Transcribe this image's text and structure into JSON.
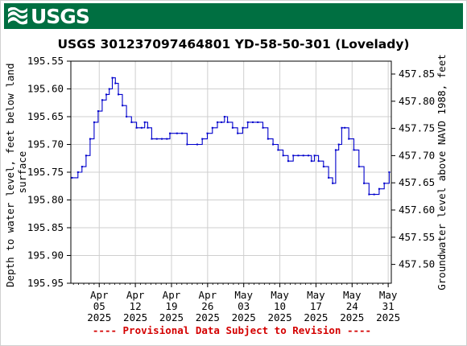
{
  "header": {
    "logo_text": "USGS"
  },
  "colors": {
    "banner": "#006f41",
    "series": "#0000cc",
    "provisional_text": "#d40000"
  },
  "chart_data": {
    "type": "line",
    "title": "USGS 301237097464801 YD-58-50-301 (Lovelady)",
    "ylabel": "Depth to water level, feet below land surface",
    "ylabel_lines": [
      "Depth to water level, feet below land",
      "surface"
    ],
    "y2label": "Groundwater level above NAVD 1988, feet",
    "footer": "---- Provisional Data Subject to Revision ----",
    "ylim": [
      195.55,
      195.95
    ],
    "y_inverted": true,
    "y_ticks": [
      "195.55",
      "195.60",
      "195.65",
      "195.70",
      "195.75",
      "195.80",
      "195.85",
      "195.90",
      "195.95"
    ],
    "y2lim": [
      457.5,
      457.85
    ],
    "y2_ticks": [
      "457.85",
      "457.80",
      "457.75",
      "457.70",
      "457.65",
      "457.60",
      "457.55",
      "457.50"
    ],
    "x_range_days": [
      1.6,
      33.0
    ],
    "x_ticks": [
      {
        "day": 5,
        "month": "Apr",
        "date": "05",
        "year": "2025"
      },
      {
        "day": 12,
        "month": "Apr",
        "date": "12",
        "year": "2025"
      },
      {
        "day": 19,
        "month": "Apr",
        "date": "19",
        "year": "2025"
      },
      {
        "day": 26,
        "month": "Apr",
        "date": "26",
        "year": "2025"
      },
      {
        "day": 33,
        "month": "May",
        "date": "03",
        "year": "2025"
      },
      {
        "day": 40,
        "month": "May",
        "date": "10",
        "year": "2025"
      },
      {
        "day": 47,
        "month": "May",
        "date": "17",
        "year": "2025"
      },
      {
        "day": 54,
        "month": "May",
        "date": "24",
        "year": "2025"
      },
      {
        "day": 61,
        "month": "May",
        "date": "31",
        "year": "2025"
      }
    ],
    "grid": true,
    "series": [
      {
        "points": [
          [
            1.6,
            195.76
          ],
          [
            2.2,
            195.75
          ],
          [
            2.6,
            195.74
          ],
          [
            3.0,
            195.72
          ],
          [
            3.4,
            195.69
          ],
          [
            3.8,
            195.66
          ],
          [
            4.2,
            195.64
          ],
          [
            4.6,
            195.62
          ],
          [
            5.0,
            195.61
          ],
          [
            5.3,
            195.6
          ],
          [
            5.6,
            195.58
          ],
          [
            5.9,
            195.59
          ],
          [
            6.2,
            195.61
          ],
          [
            6.6,
            195.63
          ],
          [
            7.0,
            195.65
          ],
          [
            7.5,
            195.66
          ],
          [
            8.0,
            195.67
          ],
          [
            8.5,
            195.67
          ],
          [
            8.8,
            195.66
          ],
          [
            9.1,
            195.67
          ],
          [
            9.5,
            195.69
          ],
          [
            10.0,
            195.69
          ],
          [
            10.5,
            195.69
          ],
          [
            11.0,
            195.69
          ],
          [
            11.3,
            195.68
          ],
          [
            12.0,
            195.68
          ],
          [
            12.5,
            195.68
          ],
          [
            13.0,
            195.7
          ],
          [
            14.0,
            195.7
          ],
          [
            14.5,
            195.69
          ],
          [
            15.0,
            195.68
          ],
          [
            15.5,
            195.67
          ],
          [
            16.0,
            195.66
          ],
          [
            16.4,
            195.66
          ],
          [
            16.7,
            195.65
          ],
          [
            17.0,
            195.66
          ],
          [
            17.5,
            195.67
          ],
          [
            18.0,
            195.68
          ],
          [
            18.5,
            195.67
          ],
          [
            19.0,
            195.66
          ],
          [
            19.5,
            195.66
          ],
          [
            20.0,
            195.66
          ],
          [
            20.5,
            195.67
          ],
          [
            21.0,
            195.69
          ],
          [
            21.5,
            195.7
          ],
          [
            22.0,
            195.71
          ],
          [
            22.5,
            195.72
          ],
          [
            23.0,
            195.73
          ],
          [
            23.5,
            195.72
          ],
          [
            24.0,
            195.72
          ],
          [
            24.5,
            195.72
          ],
          [
            25.0,
            195.72
          ],
          [
            25.3,
            195.73
          ],
          [
            25.6,
            195.72
          ],
          [
            26.0,
            195.73
          ],
          [
            26.5,
            195.74
          ],
          [
            27.0,
            195.76
          ],
          [
            27.4,
            195.77
          ],
          [
            27.7,
            195.71
          ],
          [
            28.0,
            195.7
          ],
          [
            28.3,
            195.67
          ],
          [
            28.6,
            195.67
          ],
          [
            29.0,
            195.69
          ],
          [
            29.5,
            195.71
          ],
          [
            30.0,
            195.74
          ],
          [
            30.5,
            195.77
          ],
          [
            31.0,
            195.79
          ],
          [
            31.5,
            195.79
          ],
          [
            32.0,
            195.78
          ],
          [
            32.5,
            195.77
          ],
          [
            33.0,
            195.75
          ]
        ]
      }
    ]
  }
}
